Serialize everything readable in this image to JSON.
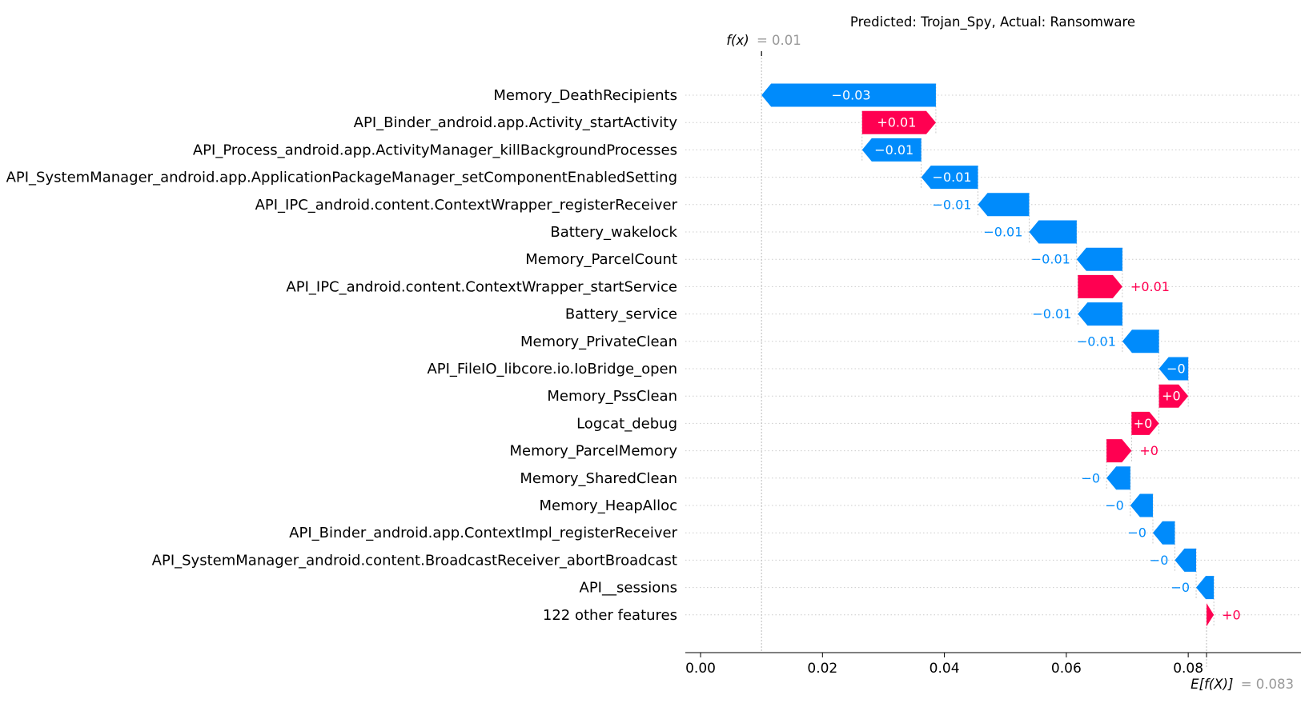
{
  "chart_data": {
    "type": "waterfall",
    "title": "Predicted: Trojan_Spy, Actual: Ransomware",
    "base_value": 0.083,
    "output_value": 0.01,
    "fx_label": {
      "symbol": "f(x)",
      "value_text": "= 0.01"
    },
    "efx_label": {
      "symbol": "E[f(X)]",
      "value_text": "= 0.083"
    },
    "xlim": [
      -0.0025,
      0.0985
    ],
    "xticks": [
      0.0,
      0.02,
      0.04,
      0.06,
      0.08
    ],
    "xtick_labels": [
      "0.00",
      "0.02",
      "0.04",
      "0.06",
      "0.08"
    ],
    "colors": {
      "positive": "#ff0051",
      "negative": "#008bfb",
      "axis": "#000000",
      "gridline": "#cccccc"
    },
    "features": [
      {
        "name": "Memory_DeathRecipients",
        "start": 0.0386,
        "end": 0.01,
        "label": "−0.03"
      },
      {
        "name": "API_Binder_android.app.Activity_startActivity",
        "start": 0.0265,
        "end": 0.0386,
        "label": "+0.01"
      },
      {
        "name": "API_Process_android.app.ActivityManager_killBackgroundProcesses",
        "start": 0.0362,
        "end": 0.0265,
        "label": "−0.01"
      },
      {
        "name": "API_SystemManager_android.app.ApplicationPackageManager_setComponentEnabledSetting",
        "start": 0.0455,
        "end": 0.0362,
        "label": "−0.01"
      },
      {
        "name": "API_IPC_android.content.ContextWrapper_registerReceiver",
        "start": 0.0539,
        "end": 0.0455,
        "label": "−0.01"
      },
      {
        "name": "Battery_wakelock",
        "start": 0.0617,
        "end": 0.0539,
        "label": "−0.01"
      },
      {
        "name": "Memory_ParcelCount",
        "start": 0.0692,
        "end": 0.0617,
        "label": "−0.01"
      },
      {
        "name": "API_IPC_android.content.ContextWrapper_startService",
        "start": 0.0619,
        "end": 0.0692,
        "label": "+0.01"
      },
      {
        "name": "Battery_service",
        "start": 0.0692,
        "end": 0.0619,
        "label": "−0.01"
      },
      {
        "name": "Memory_PrivateClean",
        "start": 0.0752,
        "end": 0.0692,
        "label": "−0.01"
      },
      {
        "name": "API_FileIO_libcore.io.IoBridge_open",
        "start": 0.08,
        "end": 0.0752,
        "label": "−0"
      },
      {
        "name": "Memory_PssClean",
        "start": 0.0752,
        "end": 0.08,
        "label": "+0"
      },
      {
        "name": "Logcat_debug",
        "start": 0.0707,
        "end": 0.0752,
        "label": "+0"
      },
      {
        "name": "Memory_ParcelMemory",
        "start": 0.0666,
        "end": 0.0707,
        "label": "+0"
      },
      {
        "name": "Memory_SharedClean",
        "start": 0.0705,
        "end": 0.0666,
        "label": "−0"
      },
      {
        "name": "Memory_HeapAlloc",
        "start": 0.0742,
        "end": 0.0705,
        "label": "−0"
      },
      {
        "name": "API_Binder_android.app.ContextImpl_registerReceiver",
        "start": 0.0778,
        "end": 0.0742,
        "label": "−0"
      },
      {
        "name": "API_SystemManager_android.content.BroadcastReceiver_abortBroadcast",
        "start": 0.0813,
        "end": 0.0778,
        "label": "−0"
      },
      {
        "name": "API__sessions",
        "start": 0.0842,
        "end": 0.0813,
        "label": "−0"
      },
      {
        "name": "122 other features",
        "start": 0.083,
        "end": 0.0842,
        "label": "+0"
      }
    ]
  }
}
